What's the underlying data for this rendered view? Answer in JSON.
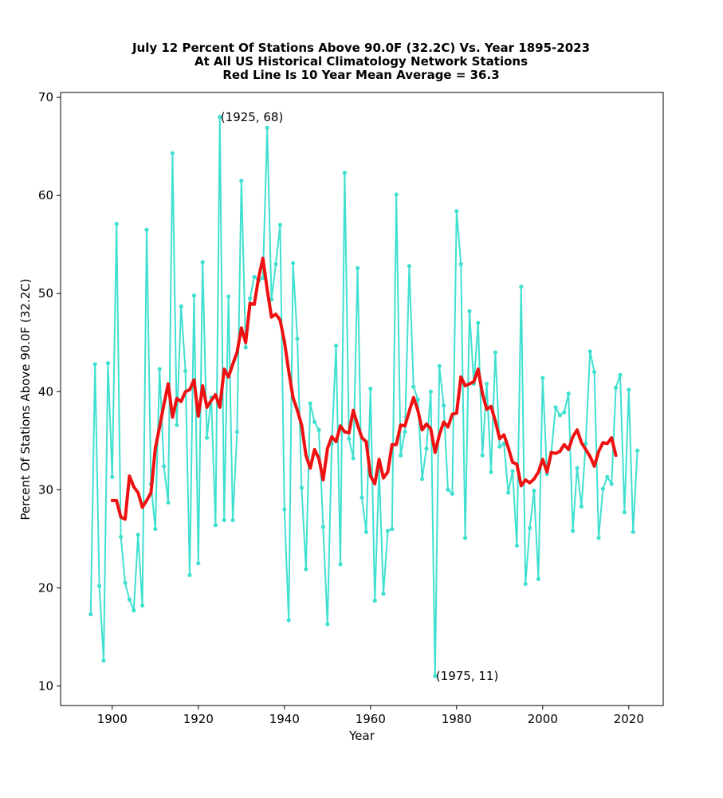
{
  "chart_data": {
    "type": "line",
    "title_lines": [
      "July 12 Percent Of Stations Above 90.0F (32.2C) Vs. Year 1895-2023",
      "At All US Historical Climatology Network Stations",
      "Red Line Is 10 Year Mean  Average = 36.3"
    ],
    "xlabel": "Year",
    "ylabel": "Percent Of Stations Above 90.0F (32.2C)",
    "xlim": [
      1888,
      2028
    ],
    "ylim": [
      8,
      70.5
    ],
    "xticks": [
      1900,
      1920,
      1940,
      1960,
      1980,
      2000,
      2020
    ],
    "yticks": [
      10,
      20,
      30,
      40,
      50,
      60,
      70
    ],
    "grid": false,
    "colors": {
      "series": "#40e0d0",
      "mean": "#ee1111"
    },
    "series": [
      {
        "x": [
          1895,
          1896,
          1897,
          1898,
          1899,
          1900,
          1901,
          1902,
          1903,
          1904,
          1905,
          1906,
          1907,
          1908,
          1909,
          1910,
          1911,
          1912,
          1913,
          1914,
          1915,
          1916,
          1917,
          1918,
          1919,
          1920,
          1921,
          1922,
          1923,
          1924,
          1925,
          1926,
          1927,
          1928,
          1929,
          1930,
          1931,
          1932,
          1933,
          1934,
          1935,
          1936,
          1937,
          1938,
          1939,
          1940,
          1941,
          1942,
          1943,
          1944,
          1945,
          1946,
          1947,
          1948,
          1949,
          1950,
          1951,
          1952,
          1953,
          1954,
          1955,
          1956,
          1957,
          1958,
          1959,
          1960,
          1961,
          1962,
          1963,
          1964,
          1965,
          1966,
          1967,
          1968,
          1969,
          1970,
          1971,
          1972,
          1973,
          1974,
          1975,
          1976,
          1977,
          1978,
          1979,
          1980,
          1981,
          1982,
          1983,
          1984,
          1985,
          1986,
          1987,
          1988,
          1989,
          1990,
          1991,
          1992,
          1993,
          1994,
          1995,
          1996,
          1997,
          1998,
          1999,
          2000,
          2001,
          2002,
          2003,
          2004,
          2005,
          2006,
          2007,
          2008,
          2009,
          2010,
          2011,
          2012,
          2013,
          2014,
          2015,
          2016,
          2017,
          2018,
          2019,
          2020,
          2021,
          2022
        ],
        "y": [
          17.3,
          42.8,
          20.2,
          12.6,
          42.9,
          31.3,
          57.1,
          25.2,
          20.5,
          18.8,
          17.7,
          25.4,
          18.2,
          56.5,
          30.6,
          26.0,
          42.3,
          32.4,
          28.7,
          64.3,
          36.6,
          48.7,
          42.1,
          21.3,
          49.8,
          22.5,
          53.2,
          35.3,
          39.4,
          26.4,
          68.0,
          26.9,
          49.7,
          26.9,
          35.9,
          61.5,
          44.5,
          49.5,
          51.7,
          51.3,
          51.6,
          66.9,
          49.4,
          53.0,
          57.0,
          28.0,
          16.7,
          53.1,
          45.4,
          30.2,
          21.9,
          38.8,
          36.9,
          36.1,
          26.2,
          16.3,
          34.7,
          44.7,
          22.4,
          62.3,
          35.2,
          33.2,
          52.6,
          29.2,
          25.7,
          40.3,
          18.7,
          32.0,
          19.4,
          25.8,
          26.0,
          60.1,
          33.5,
          35.9,
          52.8,
          40.5,
          39.2,
          31.1,
          34.2,
          40.0,
          11.0,
          42.6,
          38.6,
          30.0,
          29.6,
          58.4,
          53.0,
          25.1,
          48.2,
          40.8,
          47.0,
          33.5,
          40.8,
          31.8,
          44.0,
          34.4,
          34.7,
          29.7,
          31.9,
          24.3,
          50.7,
          20.4,
          26.1,
          29.9,
          20.9,
          41.4,
          31.6,
          33.8,
          38.4,
          37.6,
          37.9,
          39.8,
          25.8,
          32.2,
          28.3,
          34.7,
          44.1,
          42.0,
          25.1,
          30.1,
          31.3,
          30.6,
          40.4,
          41.7,
          27.7,
          40.2,
          25.7,
          34.0
        ]
      },
      {
        "x": [
          1900,
          1901,
          1902,
          1903,
          1904,
          1905,
          1906,
          1907,
          1908,
          1909,
          1910,
          1911,
          1912,
          1913,
          1914,
          1915,
          1916,
          1917,
          1918,
          1919,
          1920,
          1921,
          1922,
          1923,
          1924,
          1925,
          1926,
          1927,
          1928,
          1929,
          1930,
          1931,
          1932,
          1933,
          1934,
          1935,
          1936,
          1937,
          1938,
          1939,
          1940,
          1941,
          1942,
          1943,
          1944,
          1945,
          1946,
          1947,
          1948,
          1949,
          1950,
          1951,
          1952,
          1953,
          1954,
          1955,
          1956,
          1957,
          1958,
          1959,
          1960,
          1961,
          1962,
          1963,
          1964,
          1965,
          1966,
          1967,
          1968,
          1969,
          1970,
          1971,
          1972,
          1973,
          1974,
          1975,
          1976,
          1977,
          1978,
          1979,
          1980,
          1981,
          1982,
          1983,
          1984,
          1985,
          1986,
          1987,
          1988,
          1989,
          1990,
          1991,
          1992,
          1993,
          1994,
          1995,
          1996,
          1997,
          1998,
          1999,
          2000,
          2001,
          2002,
          2003,
          2004,
          2005,
          2006,
          2007,
          2008,
          2009,
          2010,
          2011,
          2012,
          2013,
          2014,
          2015,
          2016,
          2017
        ],
        "y": [
          28.9,
          28.9,
          27.2,
          27.0,
          31.4,
          30.3,
          29.7,
          28.2,
          28.9,
          29.7,
          34.2,
          36.4,
          38.7,
          40.8,
          37.4,
          39.3,
          39.0,
          40.0,
          40.2,
          41.2,
          37.5,
          40.6,
          38.4,
          39.1,
          39.7,
          38.4,
          42.3,
          41.5,
          42.8,
          44.0,
          46.5,
          45.0,
          49.0,
          48.9,
          51.6,
          53.6,
          50.4,
          47.6,
          47.9,
          47.3,
          45.1,
          42.1,
          39.4,
          38.1,
          36.6,
          33.5,
          32.2,
          34.1,
          33.2,
          31.0,
          34.2,
          35.4,
          34.9,
          36.5,
          35.9,
          35.8,
          38.1,
          36.6,
          35.3,
          34.9,
          31.4,
          30.6,
          33.1,
          31.2,
          31.8,
          34.6,
          34.6,
          36.6,
          36.5,
          38.0,
          39.4,
          38.1,
          36.1,
          36.7,
          36.2,
          33.8,
          35.6,
          36.9,
          36.4,
          37.7,
          37.8,
          41.5,
          40.6,
          40.8,
          41.0,
          42.3,
          39.8,
          38.2,
          38.5,
          37.0,
          35.2,
          35.6,
          34.3,
          32.8,
          32.6,
          30.4,
          31.0,
          30.7,
          31.1,
          31.8,
          33.1,
          31.8,
          33.8,
          33.7,
          33.9,
          34.6,
          34.1,
          35.4,
          36.1,
          34.8,
          34.1,
          33.4,
          32.4,
          33.9,
          34.8,
          34.7,
          35.3,
          33.5
        ]
      }
    ],
    "annotations": [
      {
        "x": 1925,
        "y": 68,
        "text": "(1925, 68)"
      },
      {
        "x": 1975,
        "y": 11,
        "text": "(1975, 11)"
      }
    ]
  }
}
